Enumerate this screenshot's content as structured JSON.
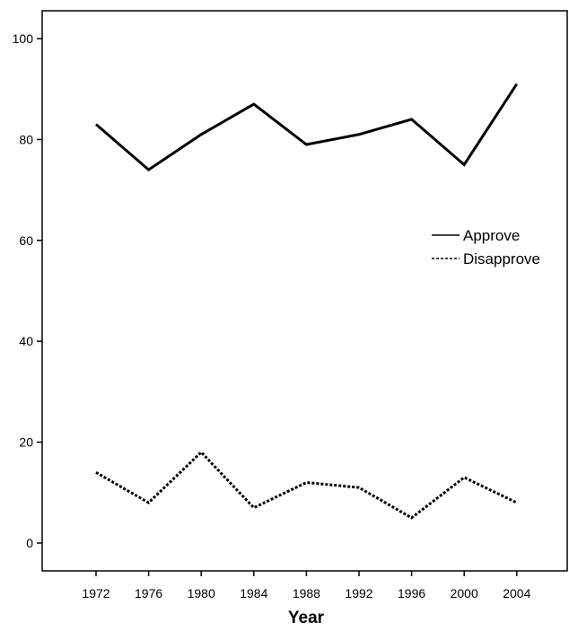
{
  "chart_data": {
    "type": "line",
    "title": "",
    "xlabel": "Year",
    "ylabel": "",
    "categories": [
      "1972",
      "1976",
      "1980",
      "1984",
      "1988",
      "1992",
      "1996",
      "2000",
      "2004"
    ],
    "ylim": [
      -5,
      105
    ],
    "yticks": [
      0,
      20,
      40,
      60,
      80,
      100
    ],
    "grid": false,
    "legend_position": "right",
    "series": [
      {
        "name": "Approve",
        "style": "solid",
        "color": "#000000",
        "values": [
          83,
          74,
          81,
          87,
          79,
          81,
          84,
          75,
          91
        ]
      },
      {
        "name": "Disapprove",
        "style": "dotted",
        "color": "#000000",
        "values": [
          14,
          8,
          18,
          7,
          12,
          11,
          5,
          13,
          8
        ]
      }
    ]
  }
}
